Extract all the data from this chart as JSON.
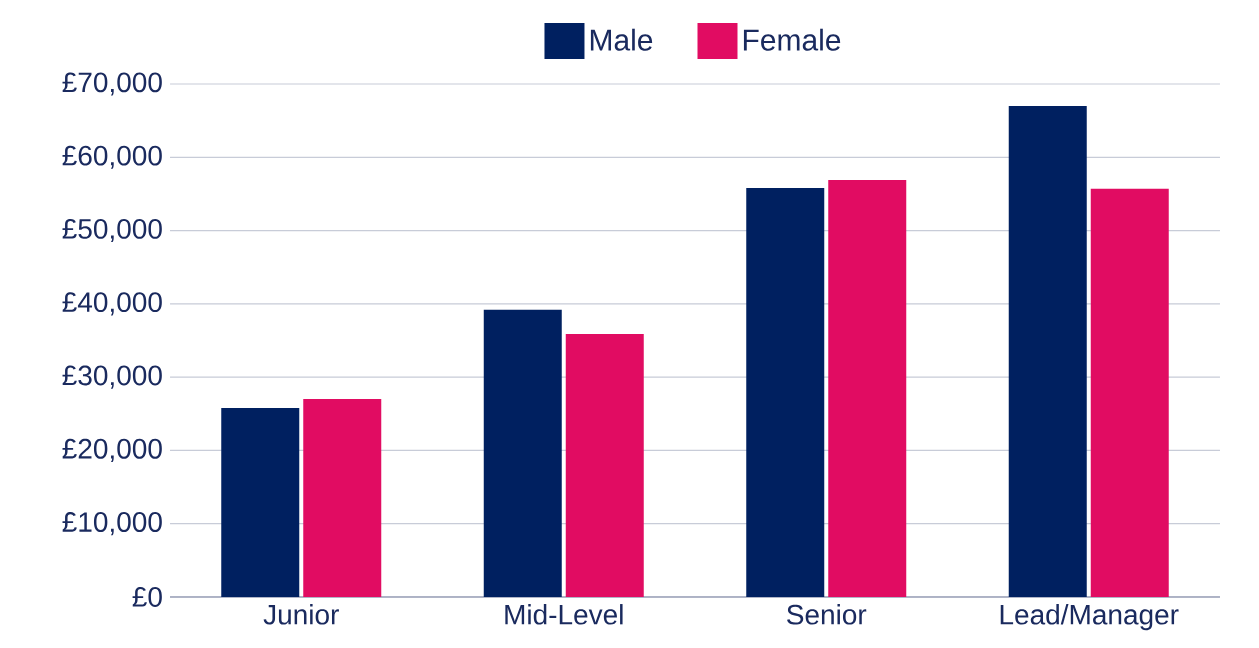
{
  "chart_data": {
    "type": "bar",
    "categories": [
      "Junior",
      "Mid-Level",
      "Senior",
      "Lead/Manager"
    ],
    "series": [
      {
        "name": "Male",
        "color": "#002060",
        "values": [
          25800,
          39200,
          55800,
          67000
        ]
      },
      {
        "name": "Female",
        "color": "#e10c62",
        "values": [
          27000,
          35900,
          56900,
          55700
        ]
      }
    ],
    "ylim": [
      0,
      70000
    ],
    "yticks": [
      {
        "value": 0,
        "label": "£0"
      },
      {
        "value": 10000,
        "label": "£10,000"
      },
      {
        "value": 20000,
        "label": "£20,000"
      },
      {
        "value": 30000,
        "label": "£30,000"
      },
      {
        "value": 40000,
        "label": "£40,000"
      },
      {
        "value": 50000,
        "label": "£50,000"
      },
      {
        "value": 60000,
        "label": "£60,000"
      },
      {
        "value": 70000,
        "label": "£70,000"
      }
    ],
    "grid": "y",
    "legend": "top"
  }
}
